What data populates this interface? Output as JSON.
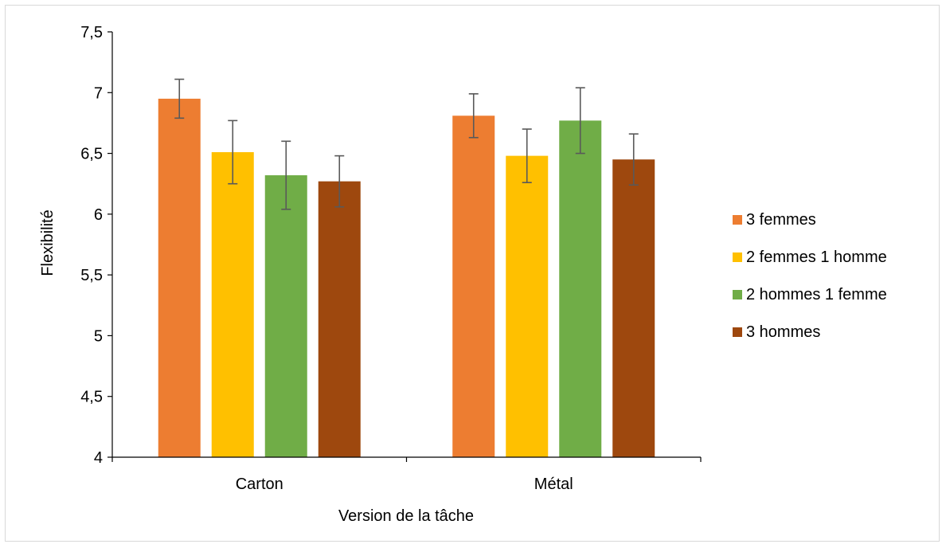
{
  "chart_data": {
    "type": "bar",
    "title": "",
    "xlabel": "Version de la tâche",
    "ylabel": "Flexibilité",
    "ylim": [
      4,
      7.5
    ],
    "yticks": [
      "4",
      "4,5",
      "5",
      "5,5",
      "6",
      "6,5",
      "7",
      "7,5"
    ],
    "ytick_values": [
      4,
      4.5,
      5,
      5.5,
      6,
      6.5,
      7,
      7.5
    ],
    "categories": [
      "Carton",
      "Métal"
    ],
    "series": [
      {
        "name": "3 femmes",
        "color": "#ED7D31",
        "values": [
          6.95,
          6.81
        ],
        "error": [
          0.16,
          0.18
        ]
      },
      {
        "name": "2 femmes 1 homme",
        "color": "#FFC000",
        "values": [
          6.51,
          6.48
        ],
        "error": [
          0.26,
          0.22
        ]
      },
      {
        "name": "2 hommes 1 femme",
        "color": "#70AD47",
        "values": [
          6.32,
          6.77
        ],
        "error": [
          0.28,
          0.27
        ]
      },
      {
        "name": "3 hommes",
        "color": "#9E480E",
        "values": [
          6.27,
          6.45
        ],
        "error": [
          0.21,
          0.21
        ]
      }
    ],
    "grid": false,
    "legend_position": "right",
    "error_bars": true
  }
}
